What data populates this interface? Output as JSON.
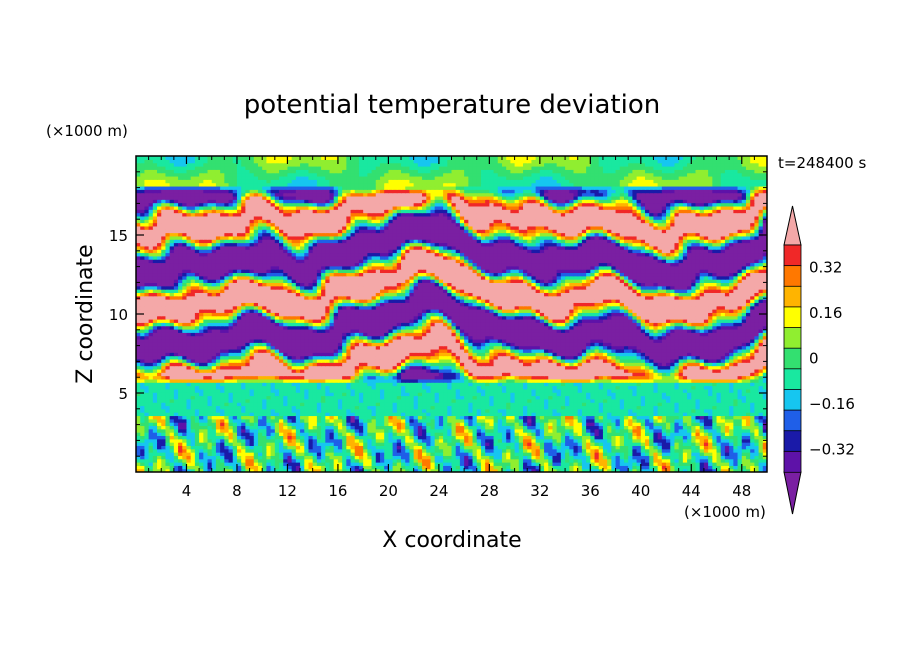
{
  "chart_data": {
    "type": "heatmap",
    "title": "potential temperature deviation",
    "xlabel": "X coordinate",
    "ylabel": "Z coordinate",
    "x_unit": "(×1000 m)",
    "y_unit": "(×1000 m)",
    "time_label": "t=248400 s",
    "xlim": [
      0,
      50
    ],
    "ylim": [
      0,
      20
    ],
    "x_ticks": [
      4,
      8,
      12,
      16,
      20,
      24,
      28,
      32,
      36,
      40,
      44,
      48
    ],
    "y_ticks": [
      5,
      10,
      15
    ],
    "colorbar": {
      "levels": [
        -0.48,
        -0.4,
        -0.32,
        -0.24,
        -0.16,
        -0.08,
        0,
        0.08,
        0.16,
        0.24,
        0.32,
        0.4,
        0.48
      ],
      "tick_labels": [
        "0.32",
        "0.16",
        "0",
        "−0.16",
        "−0.32"
      ],
      "tick_values": [
        0.32,
        0.16,
        0,
        -0.16,
        -0.32
      ],
      "colors": [
        "#7a1fa2",
        "#5e12a8",
        "#1a1aa8",
        "#1f5fe8",
        "#16c6f0",
        "#19e8a0",
        "#33e070",
        "#90ee30",
        "#ffff00",
        "#ffb400",
        "#ff7800",
        "#f02828",
        "#f4a8a8"
      ],
      "extend": "both"
    },
    "field_description_bands": [
      {
        "z_range": [
          0,
          3.5
        ],
        "pattern": "small-scale alternating convective cells near neutral with scattered warm and cold patches"
      },
      {
        "z_range": [
          3.5,
          5.5
        ],
        "pattern": "near zero (green/cyan)"
      },
      {
        "z_range": [
          5.5,
          18
        ],
        "pattern": "stacked layers alternating strongly warm (pink) and strongly cold (purple)"
      },
      {
        "z_range": [
          18,
          20
        ],
        "pattern": "near zero with weak warm patches"
      }
    ]
  }
}
